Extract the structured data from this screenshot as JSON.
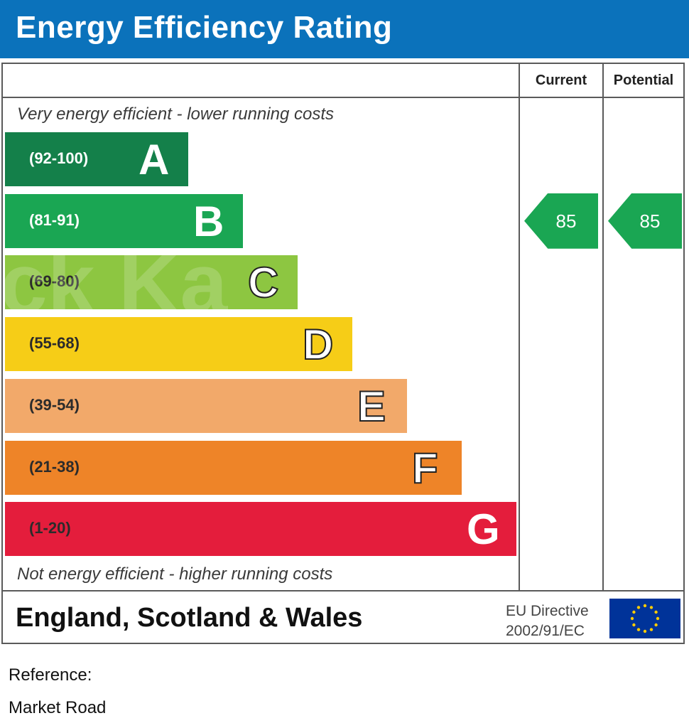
{
  "header": {
    "title": "Energy Efficiency Rating"
  },
  "columns": {
    "current": "Current",
    "potential": "Potential"
  },
  "captions": {
    "top": "Very energy efficient - lower running costs",
    "bottom": "Not energy efficient - higher running costs"
  },
  "chart_data": {
    "type": "bar",
    "categories": [
      "A",
      "B",
      "C",
      "D",
      "E",
      "F",
      "G"
    ],
    "bands": [
      {
        "letter": "A",
        "range": "(92-100)",
        "color": "#14804a",
        "range_color": "#ffffff",
        "letter_color": "#ffffff",
        "outline": false
      },
      {
        "letter": "B",
        "range": "(81-91)",
        "color": "#1aa653",
        "range_color": "#ffffff",
        "letter_color": "#ffffff",
        "outline": false
      },
      {
        "letter": "C",
        "range": "(69-80)",
        "color": "#8dc641",
        "range_color": "#2b2b2b",
        "letter_color": "#ffffff",
        "outline": true
      },
      {
        "letter": "D",
        "range": "(55-68)",
        "color": "#f6cd17",
        "range_color": "#2b2b2b",
        "letter_color": "#ffffff",
        "outline": true
      },
      {
        "letter": "E",
        "range": "(39-54)",
        "color": "#f2a96a",
        "range_color": "#2b2b2b",
        "letter_color": "#ffffff",
        "outline": true
      },
      {
        "letter": "F",
        "range": "(21-38)",
        "color": "#ee8428",
        "range_color": "#2b2b2b",
        "letter_color": "#ffffff",
        "outline": true
      },
      {
        "letter": "G",
        "range": "(1-20)",
        "color": "#e41d3c",
        "range_color": "#2b2b2b",
        "letter_color": "#ffffff",
        "outline": false
      }
    ],
    "current": {
      "value": 85,
      "band": "B",
      "color": "#1aa653"
    },
    "potential": {
      "value": 85,
      "band": "B",
      "color": "#1aa653"
    }
  },
  "footer": {
    "region": "England, Scotland & Wales",
    "eu_line1": "EU Directive",
    "eu_line2": "2002/91/EC"
  },
  "reference": {
    "label": "Reference:",
    "address": "Market Road"
  }
}
